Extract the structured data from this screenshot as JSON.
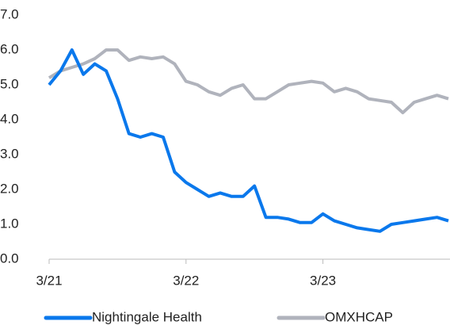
{
  "chart_data": {
    "type": "line",
    "categories": [
      "3/21",
      null,
      null,
      null,
      null,
      null,
      null,
      null,
      null,
      null,
      null,
      null,
      "3/22",
      null,
      null,
      null,
      null,
      null,
      null,
      null,
      null,
      null,
      null,
      null,
      "3/23",
      null,
      null,
      null,
      null,
      null,
      null,
      null,
      null,
      null,
      null,
      null
    ],
    "series": [
      {
        "name": "Nightingale Health",
        "color": "#0a78ec",
        "values": [
          5.0,
          5.4,
          6.0,
          5.3,
          5.6,
          5.4,
          4.6,
          3.6,
          3.5,
          3.6,
          3.5,
          2.5,
          2.2,
          2.0,
          1.8,
          1.9,
          1.8,
          1.8,
          2.1,
          1.2,
          1.2,
          1.15,
          1.05,
          1.05,
          1.3,
          1.1,
          1.0,
          0.9,
          0.85,
          0.8,
          1.0,
          1.05,
          1.1,
          1.15,
          1.2,
          1.1
        ]
      },
      {
        "name": "OMXHCAP",
        "color": "#b0b3bc",
        "values": [
          5.2,
          5.4,
          5.5,
          5.6,
          5.75,
          6.0,
          6.0,
          5.7,
          5.8,
          5.75,
          5.8,
          5.6,
          5.1,
          5.0,
          4.8,
          4.7,
          4.9,
          5.0,
          4.6,
          4.6,
          4.8,
          5.0,
          5.05,
          5.1,
          5.05,
          4.8,
          4.9,
          4.8,
          4.6,
          4.55,
          4.5,
          4.2,
          4.5,
          4.6,
          4.7,
          4.6
        ]
      }
    ],
    "ylim": [
      0,
      7
    ],
    "yticks": [
      {
        "value": 0,
        "label": "0.0"
      },
      {
        "value": 1,
        "label": "1.0"
      },
      {
        "value": 2,
        "label": "2.0"
      },
      {
        "value": 3,
        "label": "3.0"
      },
      {
        "value": 4,
        "label": "4.0"
      },
      {
        "value": 5,
        "label": "5.0"
      },
      {
        "value": 6,
        "label": "6.0"
      },
      {
        "value": 7,
        "label": "7.0"
      }
    ],
    "grid": false,
    "legend": "bottom"
  }
}
